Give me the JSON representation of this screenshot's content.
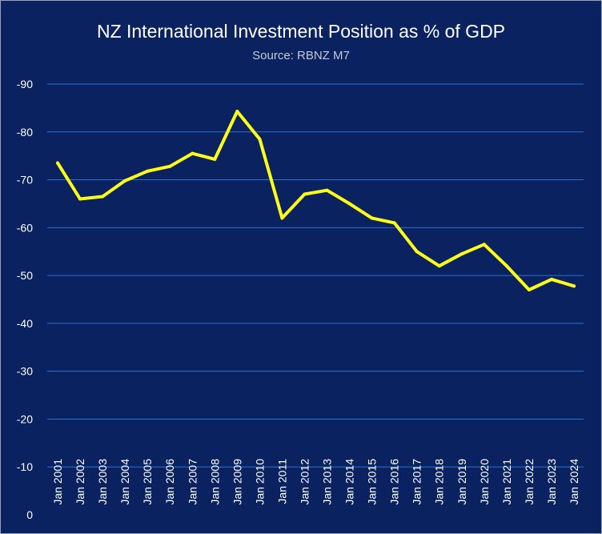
{
  "chart_data": {
    "type": "line",
    "title": "NZ International Investment Position as % of GDP",
    "subtitle": "Source: RBNZ M7",
    "xlabel": "",
    "ylabel": "",
    "categories": [
      "Jan 2001",
      "Jan 2002",
      "Jan 2003",
      "Jan 2004",
      "Jan 2005",
      "Jan 2006",
      "Jan 2007",
      "Jan 2008",
      "Jan 2009",
      "Jan 2010",
      "Jan 2011",
      "Jan 2012",
      "Jan 2013",
      "Jan 2014",
      "Jan 2015",
      "Jan 2016",
      "Jan 2017",
      "Jan 2018",
      "Jan 2019",
      "Jan 2020",
      "Jan 2021",
      "Jan 2022",
      "Jan 2023",
      "Jan 2024"
    ],
    "series": [
      {
        "values": [
          -73.5,
          -66,
          -66.5,
          -69.8,
          -71.8,
          -72.8,
          -75.5,
          -74.3,
          -84.3,
          -78.5,
          -62,
          -67,
          -67.8,
          -65,
          -62,
          -61,
          -55,
          -52,
          -54.5,
          -56.5,
          -52,
          -47,
          -49.2,
          -47.8
        ],
        "color": "#ffff1a"
      }
    ],
    "ylim": [
      0,
      -90
    ],
    "y_ticks": [
      0,
      -10,
      -20,
      -30,
      -40,
      -50,
      -60,
      -70,
      -80,
      -90
    ],
    "y_tick_labels": [
      "0",
      "-10",
      "-20",
      "-30",
      "-40",
      "-50",
      "-60",
      "-70",
      "-80",
      "-90"
    ],
    "reversed_y": true,
    "grid": true,
    "legend": "none",
    "colors": {
      "background": "#0a2260",
      "grid": "#2f6fd0",
      "text": "#ffffff",
      "subtitle": "#c4c9d6"
    }
  }
}
